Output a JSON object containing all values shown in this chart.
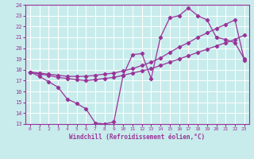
{
  "xlabel": "Windchill (Refroidissement éolien,°C)",
  "bg_color": "#c8ecec",
  "grid_color": "#ffffff",
  "line_color": "#993399",
  "spine_color": "#993399",
  "xlim": [
    -0.5,
    23.5
  ],
  "ylim": [
    13,
    24
  ],
  "xticks": [
    0,
    1,
    2,
    3,
    4,
    5,
    6,
    7,
    8,
    9,
    10,
    11,
    12,
    13,
    14,
    15,
    16,
    17,
    18,
    19,
    20,
    21,
    22,
    23
  ],
  "yticks": [
    13,
    14,
    15,
    16,
    17,
    18,
    19,
    20,
    21,
    22,
    23,
    24
  ],
  "series": [
    {
      "x": [
        0,
        1,
        2,
        3,
        4,
        5,
        6,
        7,
        8,
        9,
        10,
        11,
        12,
        13,
        14,
        15,
        16,
        17,
        18,
        19,
        20,
        21,
        22,
        23
      ],
      "y": [
        17.8,
        17.4,
        16.9,
        16.4,
        15.3,
        14.9,
        14.4,
        13.1,
        13.0,
        13.2,
        17.5,
        19.4,
        19.5,
        17.2,
        21.0,
        22.8,
        23.0,
        23.7,
        23.0,
        22.6,
        21.0,
        20.8,
        20.5,
        19.0
      ]
    },
    {
      "x": [
        0,
        1,
        2,
        3,
        4,
        5,
        6,
        7,
        8,
        9,
        10,
        11,
        12,
        13,
        14,
        15,
        16,
        17,
        18,
        19,
        20,
        21,
        22,
        23
      ],
      "y": [
        17.8,
        17.7,
        17.6,
        17.5,
        17.4,
        17.4,
        17.4,
        17.5,
        17.6,
        17.7,
        17.9,
        18.1,
        18.4,
        18.7,
        19.1,
        19.6,
        20.1,
        20.5,
        21.0,
        21.4,
        21.8,
        22.2,
        22.6,
        18.9
      ]
    },
    {
      "x": [
        0,
        1,
        2,
        3,
        4,
        5,
        6,
        7,
        8,
        9,
        10,
        11,
        12,
        13,
        14,
        15,
        16,
        17,
        18,
        19,
        20,
        21,
        22,
        23
      ],
      "y": [
        17.8,
        17.6,
        17.5,
        17.3,
        17.2,
        17.1,
        17.0,
        17.1,
        17.2,
        17.3,
        17.5,
        17.7,
        17.9,
        18.1,
        18.4,
        18.7,
        19.0,
        19.3,
        19.6,
        19.9,
        20.2,
        20.5,
        20.8,
        21.2
      ]
    }
  ]
}
